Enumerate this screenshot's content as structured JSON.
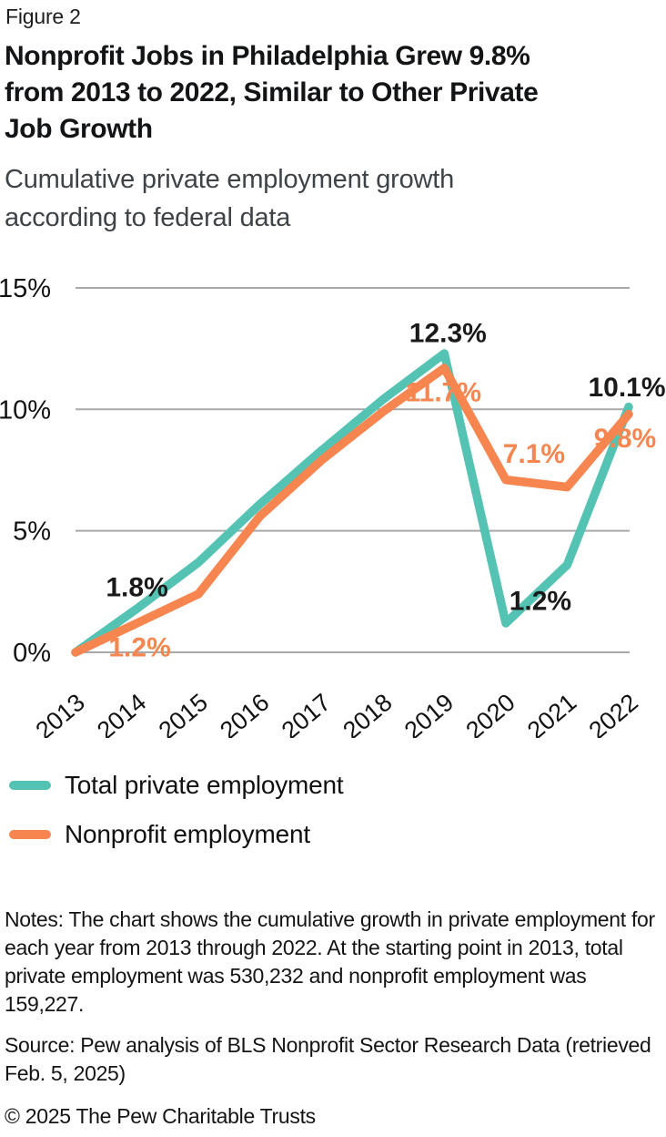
{
  "figure_label": "Figure 2",
  "title_lines": [
    "Nonprofit Jobs in Philadelphia Grew 9.8%",
    "from 2013 to 2022, Similar to Other Private",
    "Job Growth"
  ],
  "subtitle_lines": [
    "Cumulative private employment growth",
    "according to federal data"
  ],
  "colors": {
    "total": "#55c3b3",
    "nonprofit": "#f6854f",
    "gridline": "#a9a9a9",
    "label_dark": "#1a1a1a",
    "axis_text": "#121212"
  },
  "chart_data": {
    "type": "line",
    "categories": [
      "2013",
      "2014",
      "2015",
      "2016",
      "2017",
      "2018",
      "2019",
      "2020",
      "2021",
      "2022"
    ],
    "series": [
      {
        "name": "Total private employment",
        "color_key": "total",
        "values": [
          0,
          1.8,
          3.7,
          6.1,
          8.3,
          10.4,
          12.3,
          1.2,
          3.6,
          10.1
        ]
      },
      {
        "name": "Nonprofit employment",
        "color_key": "nonprofit",
        "values": [
          0,
          1.2,
          2.4,
          5.6,
          7.9,
          9.9,
          11.7,
          7.1,
          6.8,
          9.8
        ]
      }
    ],
    "ylim": [
      0,
      15
    ],
    "ytick_labels": [
      "15%",
      "10%",
      "5%",
      "0%"
    ],
    "grid": "horizontal",
    "legend_position": "bottom-left",
    "point_labels": [
      {
        "text": "1.8%",
        "series": 0,
        "x_index": 1
      },
      {
        "text": "1.2%",
        "series": 1,
        "x_index": 1
      },
      {
        "text": "12.3%",
        "series": 0,
        "x_index": 6
      },
      {
        "text": "11.7%",
        "series": 1,
        "x_index": 6
      },
      {
        "text": "1.2%",
        "series": 0,
        "x_index": 7
      },
      {
        "text": "7.1%",
        "series": 1,
        "x_index": 7
      },
      {
        "text": "10.1%",
        "series": 0,
        "x_index": 9
      },
      {
        "text": "9.8%",
        "series": 1,
        "x_index": 9
      }
    ]
  },
  "legend": [
    {
      "label": "Total private employment",
      "color_key": "total"
    },
    {
      "label": "Nonprofit employment",
      "color_key": "nonprofit"
    }
  ],
  "notes": "Notes: The chart shows the cumulative growth in private employment for each year from 2013 through 2022. At the starting point in 2013, total private employment was 530,232 and nonprofit employment was 159,227.",
  "source": "Source: Pew analysis of BLS Nonprofit Sector Research Data (retrieved Feb. 5, 2025)",
  "copyright": "© 2025 The Pew Charitable Trusts"
}
